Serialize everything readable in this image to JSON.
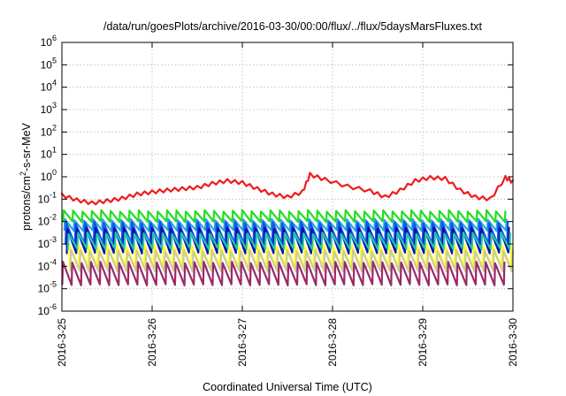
{
  "chart_data": {
    "type": "line",
    "title": "/data/run/goesPlots/archive/2016-03-30/00:00/flux/../flux/5daysMarsFluxes.txt",
    "xlabel": "Coordinated Universal Time (UTC)",
    "ylabel": {
      "prefix": "protons/cm",
      "superscript": "2",
      "suffix": "-s-sr-MeV"
    },
    "y_scale": "log",
    "ylim": [
      1e-06,
      1000000.0
    ],
    "y_ticks": [
      {
        "base": "10",
        "exp": "6",
        "value": 1000000.0
      },
      {
        "base": "10",
        "exp": "5",
        "value": 100000.0
      },
      {
        "base": "10",
        "exp": "4",
        "value": 10000.0
      },
      {
        "base": "10",
        "exp": "3",
        "value": 1000.0
      },
      {
        "base": "10",
        "exp": "2",
        "value": 100.0
      },
      {
        "base": "10",
        "exp": "1",
        "value": 10.0
      },
      {
        "base": "10",
        "exp": "0",
        "value": 1.0
      },
      {
        "base": "10",
        "exp": "-1",
        "value": 0.1
      },
      {
        "base": "10",
        "exp": "-2",
        "value": 0.01
      },
      {
        "base": "10",
        "exp": "-3",
        "value": 0.001
      },
      {
        "base": "10",
        "exp": "-4",
        "value": 0.0001
      },
      {
        "base": "10",
        "exp": "-5",
        "value": 1e-05
      },
      {
        "base": "10",
        "exp": "-6",
        "value": 1e-06
      }
    ],
    "xlim": [
      "2016-03-25",
      "2016-03-30"
    ],
    "x_ticks": [
      "2016-3-25",
      "2016-3-26",
      "2016-3-27",
      "2016-3-28",
      "2016-3-29",
      "2016-3-30"
    ],
    "grid": true,
    "series": [
      {
        "color": "#ee1c1c",
        "x": [
          "2016-03-25T00:00",
          "2016-03-25T04:00",
          "2016-03-25T08:00",
          "2016-03-25T12:00",
          "2016-03-25T16:00",
          "2016-03-25T20:00",
          "2016-03-26T00:00",
          "2016-03-26T04:00",
          "2016-03-26T08:00",
          "2016-03-26T12:00",
          "2016-03-26T16:00",
          "2016-03-26T20:00",
          "2016-03-27T00:00",
          "2016-03-27T04:00",
          "2016-03-27T08:00",
          "2016-03-27T12:00",
          "2016-03-27T16:00",
          "2016-03-27T18:00",
          "2016-03-27T22:00",
          "2016-03-28T04:00",
          "2016-03-28T10:00",
          "2016-03-28T14:00",
          "2016-03-28T18:00",
          "2016-03-28T22:00",
          "2016-03-29T02:00",
          "2016-03-29T06:00",
          "2016-03-29T10:00",
          "2016-03-29T14:00",
          "2016-03-29T18:00",
          "2016-03-29T22:00",
          "2016-03-30T00:00"
        ],
        "y": [
          0.18,
          0.11,
          0.08,
          0.1,
          0.13,
          0.2,
          0.25,
          0.3,
          0.35,
          0.4,
          0.6,
          0.8,
          0.65,
          0.35,
          0.2,
          0.15,
          0.25,
          1.5,
          0.9,
          0.45,
          0.28,
          0.15,
          0.3,
          0.8,
          1.1,
          1.0,
          0.3,
          0.15,
          0.12,
          1.1,
          0.7
        ]
      },
      {
        "color": "#22dd22",
        "x": [
          "2016-03-25T00:00",
          "2016-03-30T00:00"
        ],
        "y": [
          0.025,
          0.02
        ],
        "range": [
          0.01,
          0.03
        ]
      },
      {
        "color": "#2aa7d8",
        "x": [
          "2016-03-25T00:00",
          "2016-03-30T00:00"
        ],
        "y": [
          0.008,
          0.007
        ],
        "range": [
          0.004,
          0.012
        ]
      },
      {
        "color": "#1055ee",
        "x": [
          "2016-03-25T00:00",
          "2016-03-30T00:00"
        ],
        "y": [
          0.005,
          0.004
        ],
        "range": [
          0.001,
          0.009
        ]
      },
      {
        "color": "#1010a8",
        "x": [
          "2016-03-25T00:00",
          "2016-03-30T00:00"
        ],
        "y": [
          0.0025,
          0.002
        ],
        "range": [
          0.0004,
          0.005
        ]
      },
      {
        "color": "#20c8a8",
        "x": [
          "2016-03-25T00:00",
          "2016-03-30T00:00"
        ],
        "y": [
          0.0015,
          0.0012
        ],
        "range": [
          0.0006,
          0.003
        ]
      },
      {
        "color": "#ffff22",
        "x": [
          "2016-03-25T00:00",
          "2016-03-30T00:00"
        ],
        "y": [
          0.0003,
          0.0003
        ],
        "range": [
          0.0001,
          0.0008
        ]
      },
      {
        "color": "#cccc99",
        "x": [
          "2016-03-25T00:00",
          "2016-03-30T00:00"
        ],
        "y": [
          0.0002,
          0.0002
        ],
        "range": [
          6e-05,
          0.0005
        ]
      },
      {
        "color": "#9a2a6a",
        "x": [
          "2016-03-25T00:00",
          "2016-03-30T00:00"
        ],
        "y": [
          5e-05,
          5e-05
        ],
        "range": [
          1.5e-05,
          0.00015
        ]
      }
    ]
  }
}
